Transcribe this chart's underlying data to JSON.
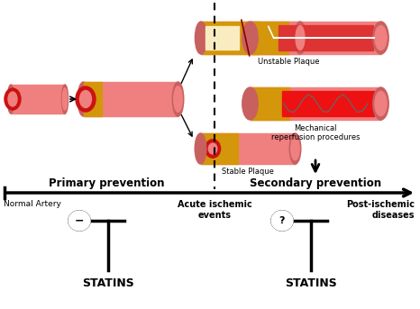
{
  "bg_color": "#ffffff",
  "primary_prevention_label": "Primary prevention",
  "secondary_prevention_label": "Secondary prevention",
  "normal_artery_label": "Normal Artery",
  "acute_ischemic_label": "Acute ischemic\nevents",
  "post_ischemic_label": "Post-ischemic\ndiseases",
  "statins_label": "STATINS",
  "unstable_plaque_label": "Unstable Plaque",
  "stable_plaque_label": "Stable Plaque",
  "mechanical_reperfusion_label": "Mechanical\nreperfusion procedures",
  "minus_symbol": "−",
  "question_symbol": "?",
  "vessel_pink": "#F08080",
  "vessel_dark_pink": "#C86060",
  "vessel_darker": "#B05050",
  "plaque_yellow": "#D4960A",
  "plaque_cream": "#F8ECC0",
  "plaque_red": "#CC1111",
  "lumen_red": "#DD3333",
  "lumen_bright_red": "#EE2222",
  "wire_color": "#DDDDDD",
  "stent_color": "#888888"
}
